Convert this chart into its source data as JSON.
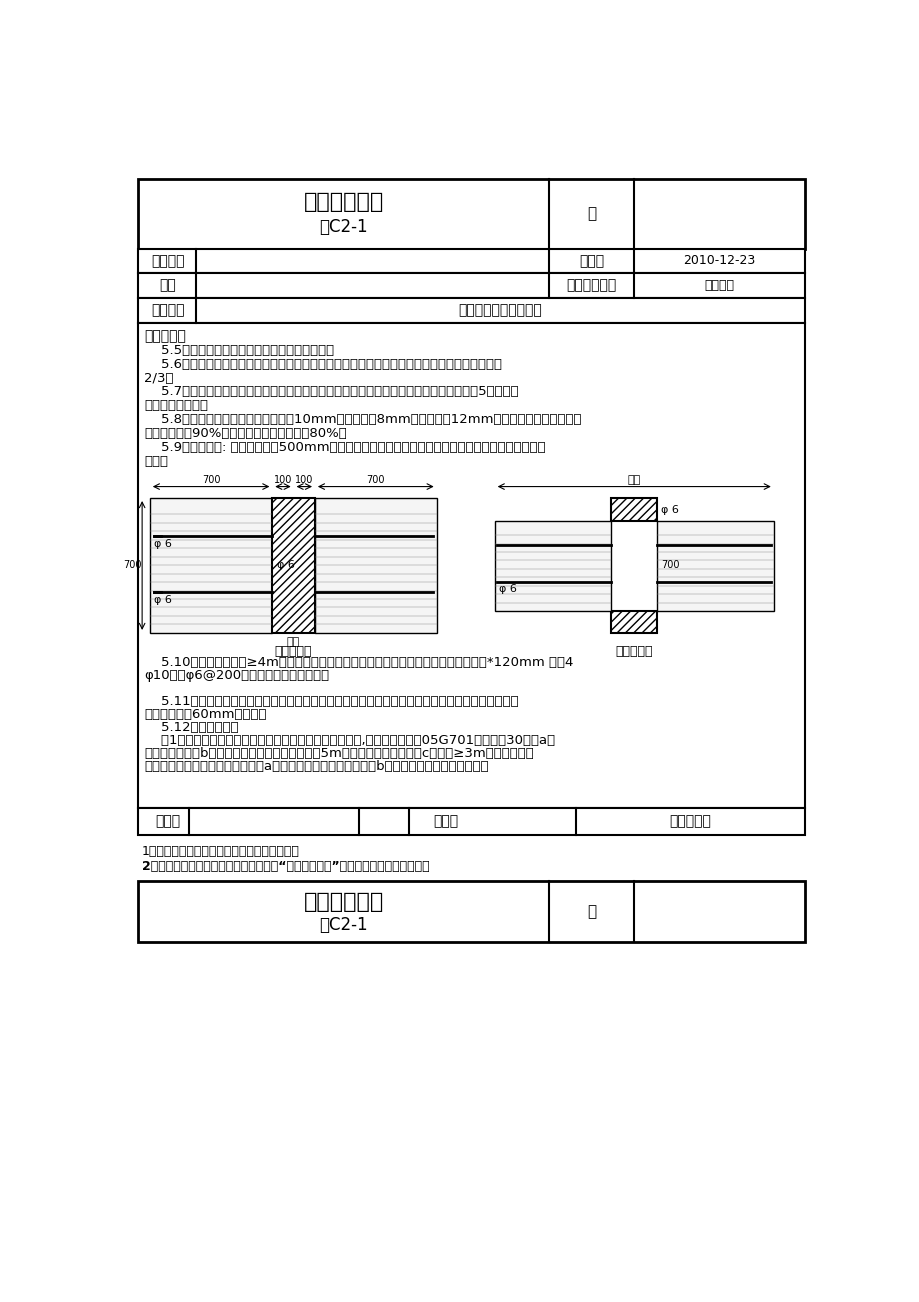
{
  "title1": "技术交底记录",
  "subtitle1": "表C2-1",
  "label_bian": "编",
  "label_gongcheng": "工程名称",
  "label_jiaodiqi": "交底日",
  "date_val": "2010-12-23",
  "label_shigong": "施工",
  "label_fenxiang": "分项工程名称",
  "fenxiang_val": "装饰工程",
  "label_jiaodiyao": "交底提要",
  "jiaodiyao_val": "砀筑工程施工技术交底",
  "content_title": "交底内容：",
  "content_lines": [
    "    5.5应对孔错缝携砌携接长度为半个主规格砌。",
    "    5.6墙体转角处和纵横墙交接处应同时砌筑临时连续处应砌成斜槎斜槎程度长度不应小于高度的",
    "2/3。",
    "    5.7墙顶部用页岩砌斜砌砌块必须逐块嵌紧挤实填满沙浆宜待下部墙体充分收水、稳定（5天）以后",
    "再砌顶部斜砌块。",
    "    5.8程度灰缝厚度和竖向灰缝一般为10mm但不应小于8mm也不应大于12mm。砌体程度灰缝的砂浆饱",
    "满度不应低于90%竖向灰缝饱满度不得低于80%。",
    "    5.9拉接筋设置: 墙体竖向每隔500mm设一道拉接筋采用植筋的方式与框架柱或混凝土墙体连接。如",
    "下图："
  ],
  "caption_left": "用于外隔墙",
  "caption_right": "用于内隔墙",
  "dim_phi6_1": "φ 6",
  "dim_phi6_2": "φ 6",
  "dim_phi6_3": "φ 6",
  "dim_phi6_4": "φ 6",
  "dim_qianghou": "墙厚",
  "dim_qianghou2": "墙厚",
  "label_bottom1": "    5.10卧梁设置：高度≥4m的填充墙半层高处或门、窗上口应设置长卧梁梁截面为墙厚*120mm 纵筋4",
  "label_bottom2": "φ10筠筋φ6@200卧梁钉筋锡入两端柱内。",
  "label_bottom3": "    5.11窗洞口砌筑：在砌筑窗洞口时窗洞口两侧按以下图所示设置实心砌块将来用以固定窗框窗底口",
  "label_bottom4": "除有梁外均设60mm厚压顶。",
  "label_bottom5": "    5.12构造柱设置：",
  "label_bottom6": "    （1）填充墙中构造柱设置：内隔墙以下情况设置构造柱,其构造详见西卉05G701（四）第30页：a、",
  "label_bottom7": "内隔墙转角处；b、相邻隔墙或框架柱的间距大于5m时墙段内增设构造柱。c、门洞≥3m的洞口两侧。",
  "label_bottom8": "围护墙的以下部位应设置构造柱：a、内外墙交接处外墙转角处；b、相邻隔墙或框架柱的间距大",
  "label_shenhe": "审核人",
  "label_jiaodi_person": "交底人",
  "label_jieshou": "接收交底人",
  "footer_note1": "1、本表由施工填写交底与承受交底各存一份。",
  "footer_note2": "2、当做分项工程施工技术交底时应填写“分项工程名称”栏其他技术交底可不填写。",
  "title2": "技术交底记录",
  "subtitle2": "表C2-1",
  "label_bian2": "编"
}
